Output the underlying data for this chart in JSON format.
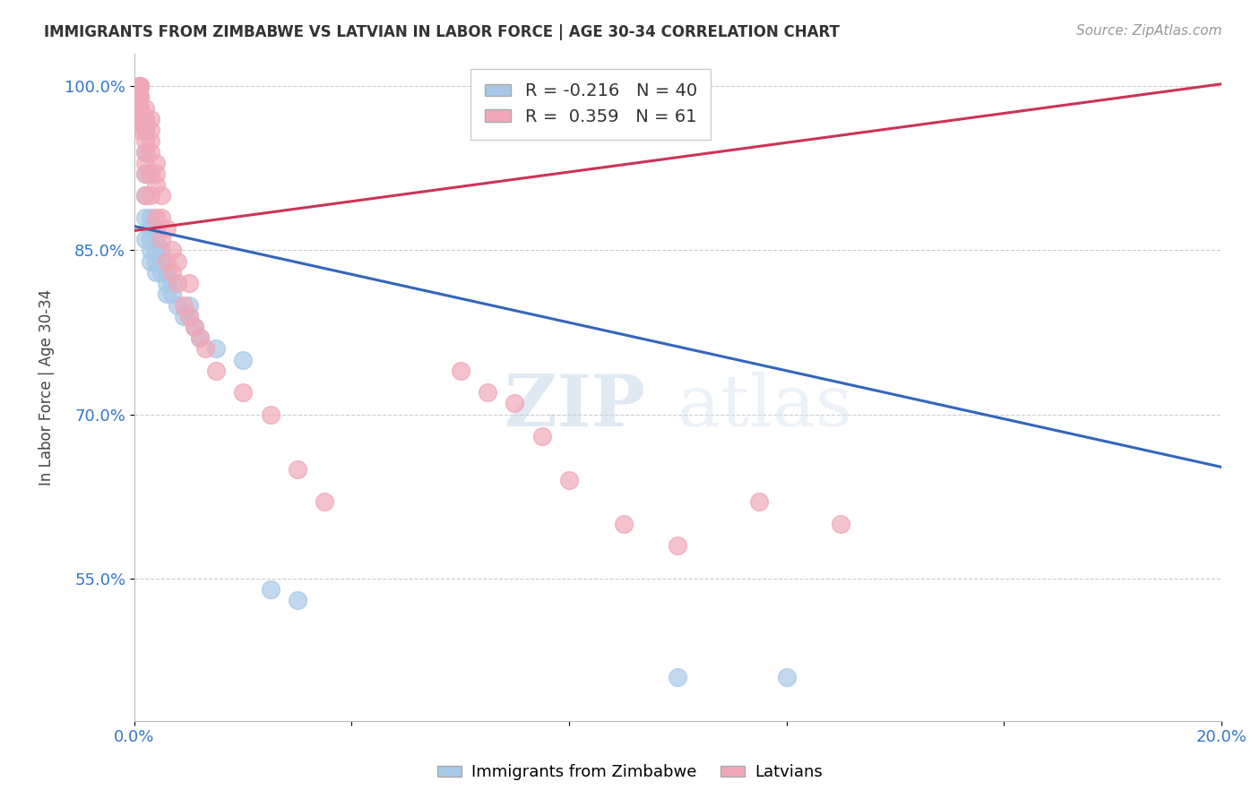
{
  "title": "IMMIGRANTS FROM ZIMBABWE VS LATVIAN IN LABOR FORCE | AGE 30-34 CORRELATION CHART",
  "source": "Source: ZipAtlas.com",
  "ylabel": "In Labor Force | Age 30-34",
  "xlim": [
    0.0,
    0.2
  ],
  "ylim": [
    0.42,
    1.03
  ],
  "yticks": [
    0.55,
    0.7,
    0.85,
    1.0
  ],
  "ytick_labels": [
    "55.0%",
    "70.0%",
    "85.0%",
    "100.0%"
  ],
  "xtick_positions": [
    0.0,
    0.04,
    0.08,
    0.12,
    0.16,
    0.2
  ],
  "xtick_labels": [
    "0.0%",
    "",
    "",
    "",
    "",
    "20.0%"
  ],
  "legend_blue_r": "-0.216",
  "legend_blue_n": "40",
  "legend_pink_r": "0.359",
  "legend_pink_n": "61",
  "blue_color": "#a8c8e8",
  "pink_color": "#f0a8b8",
  "line_blue_color": "#3366bb",
  "line_pink_color": "#cc3355",
  "watermark": "ZIPatlas",
  "blue_line_x0": 0.0,
  "blue_line_y0": 0.872,
  "blue_line_x1": 0.2,
  "blue_line_y1": 0.652,
  "pink_line_x0": 0.0,
  "pink_line_y0": 0.868,
  "pink_line_x1": 0.2,
  "pink_line_y1": 1.002,
  "blue_points_x": [
    0.001,
    0.001,
    0.001,
    0.001,
    0.002,
    0.002,
    0.002,
    0.002,
    0.002,
    0.002,
    0.003,
    0.003,
    0.003,
    0.003,
    0.003,
    0.004,
    0.004,
    0.004,
    0.004,
    0.004,
    0.005,
    0.005,
    0.005,
    0.006,
    0.006,
    0.006,
    0.007,
    0.007,
    0.008,
    0.009,
    0.01,
    0.01,
    0.011,
    0.012,
    0.015,
    0.02,
    0.025,
    0.03,
    0.1,
    0.12
  ],
  "blue_points_y": [
    1.0,
    0.99,
    0.98,
    0.97,
    0.96,
    0.94,
    0.92,
    0.9,
    0.88,
    0.86,
    0.88,
    0.87,
    0.86,
    0.85,
    0.84,
    0.87,
    0.86,
    0.85,
    0.84,
    0.83,
    0.85,
    0.84,
    0.83,
    0.83,
    0.82,
    0.81,
    0.82,
    0.81,
    0.8,
    0.79,
    0.8,
    0.79,
    0.78,
    0.77,
    0.76,
    0.75,
    0.54,
    0.53,
    0.46,
    0.46
  ],
  "pink_points_x": [
    0.001,
    0.001,
    0.001,
    0.001,
    0.001,
    0.001,
    0.001,
    0.001,
    0.001,
    0.001,
    0.001,
    0.001,
    0.001,
    0.002,
    0.002,
    0.002,
    0.002,
    0.002,
    0.002,
    0.002,
    0.002,
    0.002,
    0.003,
    0.003,
    0.003,
    0.003,
    0.003,
    0.003,
    0.004,
    0.004,
    0.004,
    0.004,
    0.005,
    0.005,
    0.005,
    0.006,
    0.006,
    0.007,
    0.007,
    0.008,
    0.008,
    0.009,
    0.01,
    0.01,
    0.011,
    0.012,
    0.013,
    0.015,
    0.02,
    0.025,
    0.03,
    0.035,
    0.06,
    0.065,
    0.07,
    0.075,
    0.08,
    0.09,
    0.1,
    0.115,
    0.13
  ],
  "pink_points_y": [
    1.0,
    1.0,
    1.0,
    1.0,
    0.99,
    0.99,
    0.99,
    0.98,
    0.98,
    0.98,
    0.97,
    0.97,
    0.96,
    0.98,
    0.97,
    0.97,
    0.96,
    0.95,
    0.94,
    0.93,
    0.92,
    0.9,
    0.97,
    0.96,
    0.95,
    0.94,
    0.92,
    0.9,
    0.93,
    0.92,
    0.91,
    0.88,
    0.9,
    0.88,
    0.86,
    0.87,
    0.84,
    0.85,
    0.83,
    0.84,
    0.82,
    0.8,
    0.82,
    0.79,
    0.78,
    0.77,
    0.76,
    0.74,
    0.72,
    0.7,
    0.65,
    0.62,
    0.74,
    0.72,
    0.71,
    0.68,
    0.64,
    0.6,
    0.58,
    0.62,
    0.6
  ]
}
